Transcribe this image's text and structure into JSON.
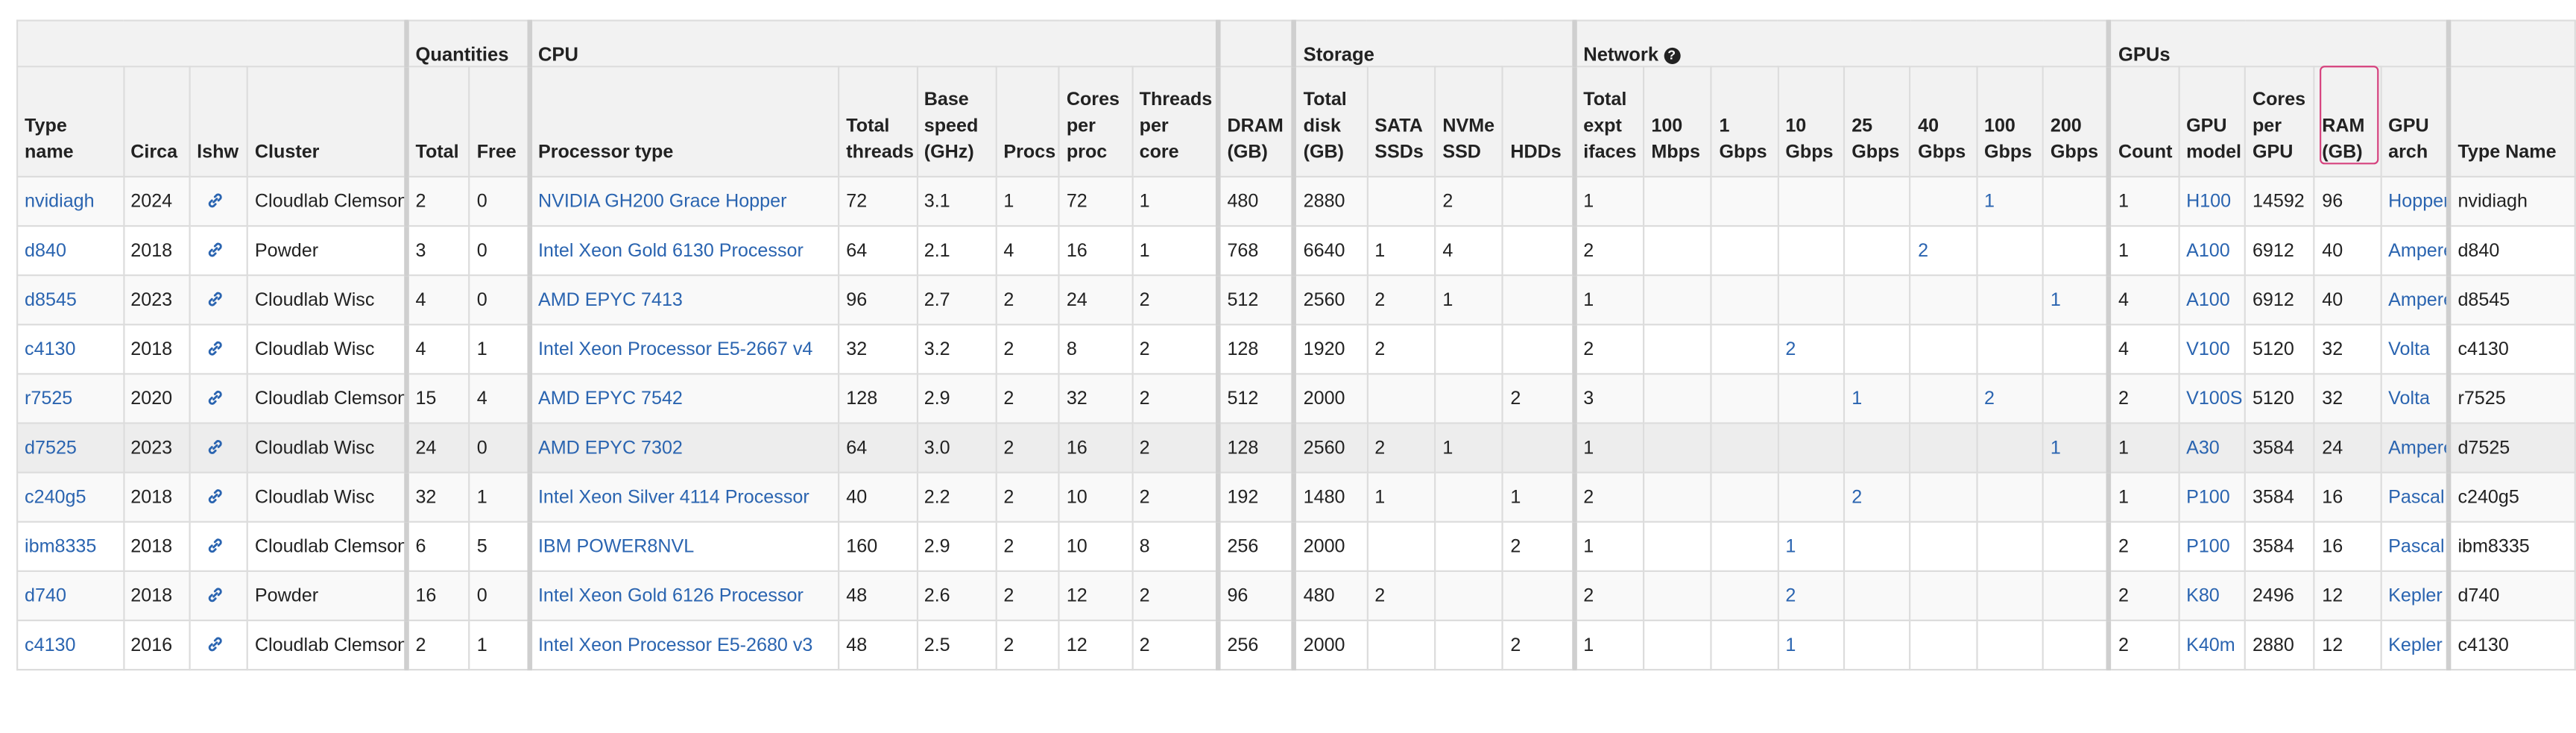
{
  "groups": {
    "quantities": "Quantities",
    "cpu": "CPU",
    "storage": "Storage",
    "network": "Network",
    "gpus": "GPUs"
  },
  "columns": {
    "type_name": "Type name",
    "circa": "Circa",
    "lshw": "lshw",
    "cluster": "Cluster",
    "total": "Total",
    "free": "Free",
    "processor_type": "Processor type",
    "total_threads": "Total threads",
    "base_speed": "Base speed (GHz)",
    "procs": "Procs",
    "cores_per_proc": "Cores per proc",
    "threads_per_core": "Threads per core",
    "dram": "DRAM (GB)",
    "total_disk": "Total disk (GB)",
    "sata_ssds": "SATA SSDs",
    "nvme_ssd": "NVMe SSD",
    "hdds": "HDDs",
    "total_expt_ifaces": "Total expt ifaces",
    "mbps100": "100 Mbps",
    "gbps1": "1 Gbps",
    "gbps10": "10 Gbps",
    "gbps25": "25 Gbps",
    "gbps40": "40 Gbps",
    "gbps100": "100 Gbps",
    "gbps200": "200 Gbps",
    "count": "Count",
    "gpu_model": "GPU model",
    "cores_per_gpu": "Cores per GPU",
    "ram_gb": "RAM (GB)",
    "gpu_arch": "GPU arch",
    "type_name_end": "Type Name"
  },
  "rows": [
    {
      "type": "nvidiagh",
      "circa": "2024",
      "cluster": "Cloudlab Clemson",
      "total": "2",
      "free": "0",
      "proc": "NVIDIA GH200 Grace Hopper",
      "threads": "72",
      "speed": "3.1",
      "procs": "1",
      "cores": "72",
      "tpc": "1",
      "dram": "480",
      "disk": "2880",
      "sata": "",
      "nvme": "2",
      "hdd": "",
      "ifaces": "1",
      "m100": "",
      "g1": "",
      "g10": "",
      "g25": "",
      "g40": "",
      "g100": "1",
      "g200": "",
      "gcount": "1",
      "gmodel": "H100",
      "gcores": "14592",
      "gram": "96",
      "garch": "Hopper"
    },
    {
      "type": "d840",
      "circa": "2018",
      "cluster": "Powder",
      "total": "3",
      "free": "0",
      "proc": "Intel Xeon Gold 6130 Processor",
      "threads": "64",
      "speed": "2.1",
      "procs": "4",
      "cores": "16",
      "tpc": "1",
      "dram": "768",
      "disk": "6640",
      "sata": "1",
      "nvme": "4",
      "hdd": "",
      "ifaces": "2",
      "m100": "",
      "g1": "",
      "g10": "",
      "g25": "",
      "g40": "2",
      "g100": "",
      "g200": "",
      "gcount": "1",
      "gmodel": "A100",
      "gcores": "6912",
      "gram": "40",
      "garch": "Ampere"
    },
    {
      "type": "d8545",
      "circa": "2023",
      "cluster": "Cloudlab Wisc",
      "total": "4",
      "free": "0",
      "proc": "AMD EPYC 7413",
      "threads": "96",
      "speed": "2.7",
      "procs": "2",
      "cores": "24",
      "tpc": "2",
      "dram": "512",
      "disk": "2560",
      "sata": "2",
      "nvme": "1",
      "hdd": "",
      "ifaces": "1",
      "m100": "",
      "g1": "",
      "g10": "",
      "g25": "",
      "g40": "",
      "g100": "",
      "g200": "1",
      "gcount": "4",
      "gmodel": "A100",
      "gcores": "6912",
      "gram": "40",
      "garch": "Ampere"
    },
    {
      "type": "c4130",
      "circa": "2018",
      "cluster": "Cloudlab Wisc",
      "total": "4",
      "free": "1",
      "proc": "Intel Xeon Processor E5-2667 v4",
      "threads": "32",
      "speed": "3.2",
      "procs": "2",
      "cores": "8",
      "tpc": "2",
      "dram": "128",
      "disk": "1920",
      "sata": "2",
      "nvme": "",
      "hdd": "",
      "ifaces": "2",
      "m100": "",
      "g1": "",
      "g10": "2",
      "g25": "",
      "g40": "",
      "g100": "",
      "g200": "",
      "gcount": "4",
      "gmodel": "V100",
      "gcores": "5120",
      "gram": "32",
      "garch": "Volta"
    },
    {
      "type": "r7525",
      "circa": "2020",
      "cluster": "Cloudlab Clemson",
      "total": "15",
      "free": "4",
      "proc": "AMD EPYC 7542",
      "threads": "128",
      "speed": "2.9",
      "procs": "2",
      "cores": "32",
      "tpc": "2",
      "dram": "512",
      "disk": "2000",
      "sata": "",
      "nvme": "",
      "hdd": "2",
      "ifaces": "3",
      "m100": "",
      "g1": "",
      "g10": "",
      "g25": "1",
      "g40": "",
      "g100": "2",
      "g200": "",
      "gcount": "2",
      "gmodel": "V100S",
      "gcores": "5120",
      "gram": "32",
      "garch": "Volta"
    },
    {
      "type": "d7525",
      "circa": "2023",
      "cluster": "Cloudlab Wisc",
      "total": "24",
      "free": "0",
      "proc": "AMD EPYC 7302",
      "threads": "64",
      "speed": "3.0",
      "procs": "2",
      "cores": "16",
      "tpc": "2",
      "dram": "128",
      "disk": "2560",
      "sata": "2",
      "nvme": "1",
      "hdd": "",
      "ifaces": "1",
      "m100": "",
      "g1": "",
      "g10": "",
      "g25": "",
      "g40": "",
      "g100": "",
      "g200": "1",
      "gcount": "1",
      "gmodel": "A30",
      "gcores": "3584",
      "gram": "24",
      "garch": "Ampere"
    },
    {
      "type": "c240g5",
      "circa": "2018",
      "cluster": "Cloudlab Wisc",
      "total": "32",
      "free": "1",
      "proc": "Intel Xeon Silver 4114 Processor",
      "threads": "40",
      "speed": "2.2",
      "procs": "2",
      "cores": "10",
      "tpc": "2",
      "dram": "192",
      "disk": "1480",
      "sata": "1",
      "nvme": "",
      "hdd": "1",
      "ifaces": "2",
      "m100": "",
      "g1": "",
      "g10": "",
      "g25": "2",
      "g40": "",
      "g100": "",
      "g200": "",
      "gcount": "1",
      "gmodel": "P100",
      "gcores": "3584",
      "gram": "16",
      "garch": "Pascal"
    },
    {
      "type": "ibm8335",
      "circa": "2018",
      "cluster": "Cloudlab Clemson",
      "total": "6",
      "free": "5",
      "proc": "IBM POWER8NVL",
      "threads": "160",
      "speed": "2.9",
      "procs": "2",
      "cores": "10",
      "tpc": "8",
      "dram": "256",
      "disk": "2000",
      "sata": "",
      "nvme": "",
      "hdd": "2",
      "ifaces": "1",
      "m100": "",
      "g1": "",
      "g10": "1",
      "g25": "",
      "g40": "",
      "g100": "",
      "g200": "",
      "gcount": "2",
      "gmodel": "P100",
      "gcores": "3584",
      "gram": "16",
      "garch": "Pascal"
    },
    {
      "type": "d740",
      "circa": "2018",
      "cluster": "Powder",
      "total": "16",
      "free": "0",
      "proc": "Intel Xeon Gold 6126 Processor",
      "threads": "48",
      "speed": "2.6",
      "procs": "2",
      "cores": "12",
      "tpc": "2",
      "dram": "96",
      "disk": "480",
      "sata": "2",
      "nvme": "",
      "hdd": "",
      "ifaces": "2",
      "m100": "",
      "g1": "",
      "g10": "2",
      "g25": "",
      "g40": "",
      "g100": "",
      "g200": "",
      "gcount": "2",
      "gmodel": "K80",
      "gcores": "2496",
      "gram": "12",
      "garch": "Kepler"
    },
    {
      "type": "c4130",
      "circa": "2016",
      "cluster": "Cloudlab Clemson",
      "total": "2",
      "free": "1",
      "proc": "Intel Xeon Processor E5-2680 v3",
      "threads": "48",
      "speed": "2.5",
      "procs": "2",
      "cores": "12",
      "tpc": "2",
      "dram": "256",
      "disk": "2000",
      "sata": "",
      "nvme": "",
      "hdd": "2",
      "ifaces": "1",
      "m100": "",
      "g1": "",
      "g10": "1",
      "g25": "",
      "g40": "",
      "g100": "",
      "g200": "",
      "gcount": "2",
      "gmodel": "K40m",
      "gcores": "2880",
      "gram": "12",
      "garch": "Kepler"
    }
  ]
}
